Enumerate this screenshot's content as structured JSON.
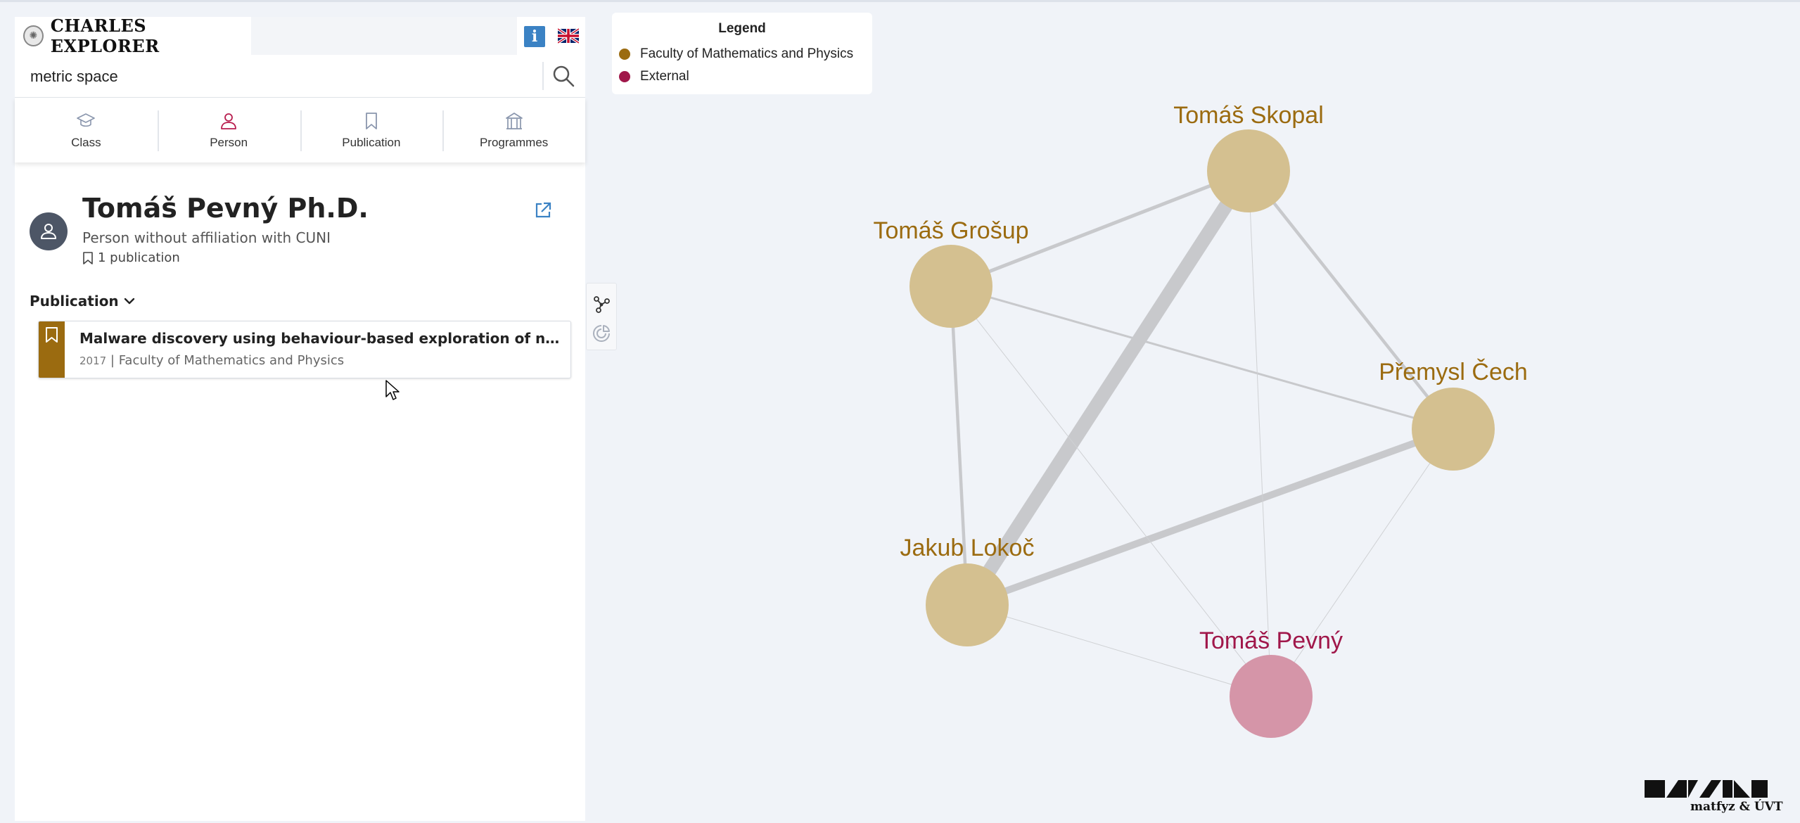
{
  "header": {
    "logo_text": "CHARLES EXPLORER",
    "info_label": "i"
  },
  "search": {
    "value": "metric space",
    "placeholder": ""
  },
  "categories": [
    {
      "label": "Class",
      "icon": "graduation-cap-icon"
    },
    {
      "label": "Person",
      "icon": "person-icon"
    },
    {
      "label": "Publication",
      "icon": "bookmark-icon"
    },
    {
      "label": "Programmes",
      "icon": "building-icon"
    }
  ],
  "person": {
    "name": "Tomáš Pevný Ph.D.",
    "subtitle": "Person without affiliation with CUNI",
    "publication_count": "1 publication"
  },
  "publications_section": {
    "heading": "Publication",
    "items": [
      {
        "title": "Malware discovery using behaviour-based exploration of netwo...",
        "year": "2017",
        "faculty": "Faculty of Mathematics and Physics"
      }
    ]
  },
  "legend": {
    "title": "Legend",
    "items": [
      {
        "label": "Faculty of Mathematics and Physics",
        "color": "#9b6b10"
      },
      {
        "label": "External",
        "color": "#a0174a"
      }
    ]
  },
  "graph": {
    "nodes": [
      {
        "id": "skopal",
        "label": "Tomáš Skopal",
        "group": "Faculty of Mathematics and Physics"
      },
      {
        "id": "grosup",
        "label": "Tomáš Grošup",
        "group": "Faculty of Mathematics and Physics"
      },
      {
        "id": "cech",
        "label": "Přemysl Čech",
        "group": "Faculty of Mathematics and Physics"
      },
      {
        "id": "lokoc",
        "label": "Jakub Lokoč",
        "group": "Faculty of Mathematics and Physics"
      },
      {
        "id": "pevny",
        "label": "Tomáš Pevný",
        "group": "External"
      }
    ],
    "node_fill": {
      "faculty": "#d4c090",
      "external": "#d595a8"
    },
    "label_color": {
      "faculty": "#9b6b10",
      "external": "#a0174a"
    }
  },
  "footer": {
    "text": "matfyz & ÚVT"
  }
}
